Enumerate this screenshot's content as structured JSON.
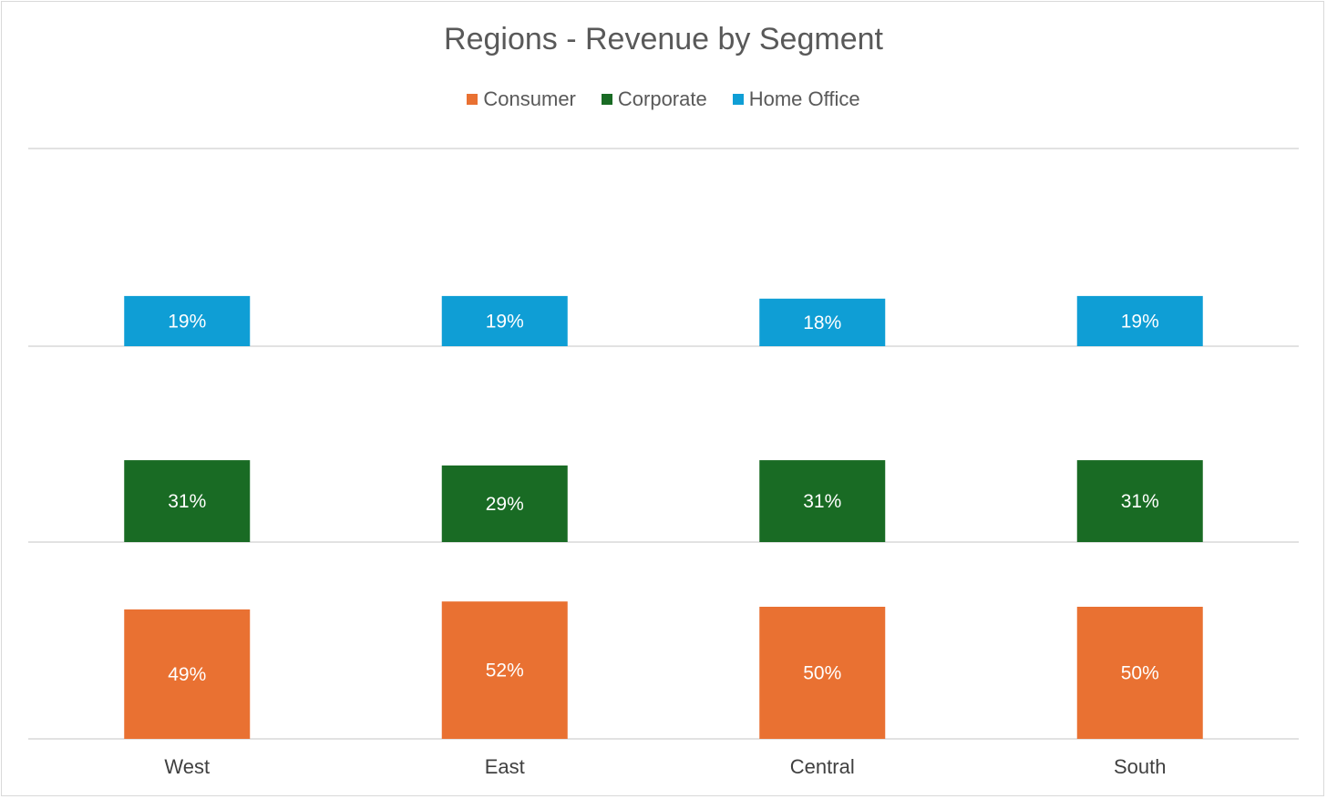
{
  "chart_data": {
    "type": "bar",
    "layout": "panel-stacked columns, one panel per segment",
    "title": "Regions - Revenue by Segment",
    "xlabel": "",
    "ylabel": "",
    "categories": [
      "West",
      "East",
      "Central",
      "South"
    ],
    "series": [
      {
        "name": "Consumer",
        "color": "#E97132",
        "values": [
          49,
          52,
          50,
          50
        ],
        "labels": [
          "49%",
          "52%",
          "50%",
          "50%"
        ]
      },
      {
        "name": "Corporate",
        "color": "#196B24",
        "values": [
          31,
          29,
          31,
          31
        ],
        "labels": [
          "31%",
          "29%",
          "31%",
          "31%"
        ]
      },
      {
        "name": "Home Office",
        "color": "#0F9ED5",
        "values": [
          19,
          19,
          18,
          19
        ],
        "labels": [
          "19%",
          "19%",
          "18%",
          "19%"
        ]
      }
    ],
    "value_unit": "%",
    "grid": true,
    "legend_position": "top"
  }
}
